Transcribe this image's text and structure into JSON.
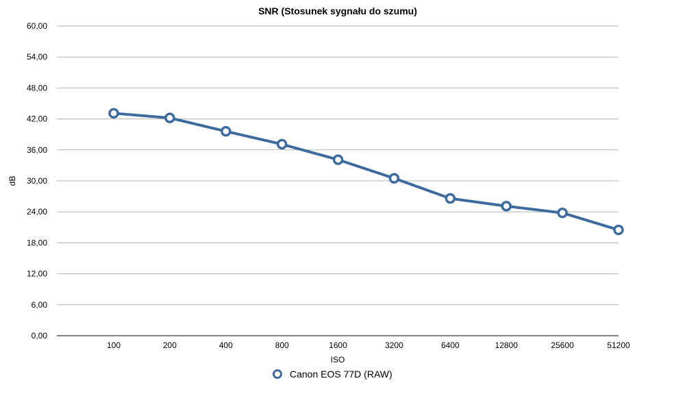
{
  "chart_data": {
    "type": "line",
    "title": "SNR (Stosunek sygnału do szumu)",
    "xlabel": "ISO",
    "ylabel": "dB",
    "categories": [
      "100",
      "200",
      "400",
      "800",
      "1600",
      "3200",
      "6400",
      "12800",
      "25600",
      "51200"
    ],
    "series": [
      {
        "name": "Canon EOS 77D (RAW)",
        "values": [
          43.1,
          42.2,
          39.6,
          37.1,
          34.1,
          30.5,
          26.6,
          25.1,
          23.8,
          20.5
        ]
      }
    ],
    "ylim": [
      0,
      60
    ],
    "yticks": [
      "0,00",
      "6,00",
      "12,00",
      "18,00",
      "24,00",
      "30,00",
      "36,00",
      "42,00",
      "48,00",
      "54,00",
      "60,00"
    ],
    "grid": true,
    "legend_position": "bottom-center",
    "series_color": "#3d6b9e",
    "grid_color": "#b3b3b3"
  }
}
